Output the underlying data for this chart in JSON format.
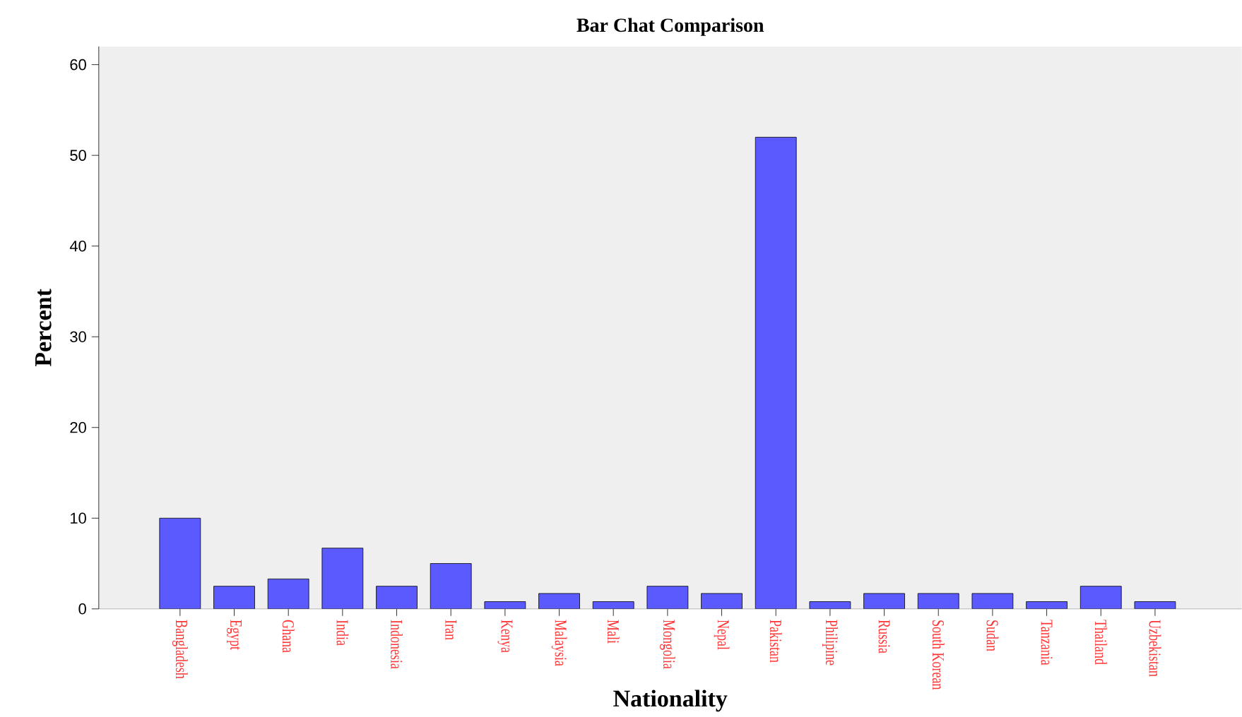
{
  "chart_data": {
    "type": "bar",
    "title": "Bar Chat Comparison",
    "xlabel": "Nationality",
    "ylabel": "Percent",
    "categories": [
      "Bangladesh",
      "Egypt",
      "Ghana",
      "India",
      "Indonesia",
      "Iran",
      "Kenya",
      "Malaysia",
      "Mali",
      "Mongolia",
      "Nepal",
      "Pakistan",
      "Philipine",
      "Russia",
      "South Korean",
      "Sudan",
      "Tanzania",
      "Thailand",
      "Uzbekistan"
    ],
    "values": [
      10.0,
      2.5,
      3.3,
      6.7,
      2.5,
      5.0,
      0.8,
      1.7,
      0.8,
      2.5,
      1.7,
      52.0,
      0.8,
      1.7,
      1.7,
      1.7,
      0.8,
      2.5,
      0.8
    ],
    "color": "#5a5aff",
    "ylim": [
      0,
      62
    ],
    "yticks": [
      0,
      10,
      20,
      30,
      40,
      50,
      60
    ],
    "grid": false
  }
}
